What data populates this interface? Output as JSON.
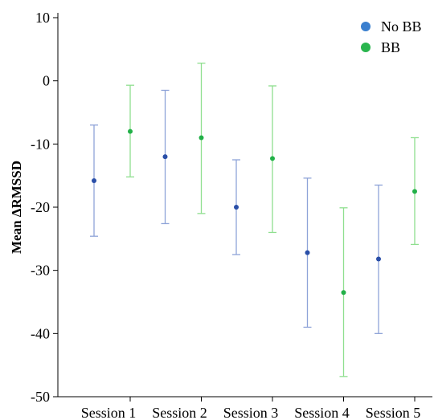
{
  "chart_data": {
    "type": "scatter",
    "subtype": "error-bar",
    "title": "",
    "xlabel": "",
    "ylabel": "Mean ΔRMSSD",
    "ylim": [
      -50,
      10
    ],
    "yticks": [
      10,
      0,
      -10,
      -20,
      -30,
      -40,
      -50
    ],
    "categories": [
      "Session 1",
      "Session 2",
      "Session 3",
      "Session 4",
      "Session 5"
    ],
    "grid": false,
    "legend_position": "top-right",
    "series": [
      {
        "name": "No BB",
        "marker_color": "#2a4fa8",
        "bar_color": "#8ea3d8",
        "legend_color": "#3a7fcf",
        "values": [
          -15.8,
          -12.0,
          -20.0,
          -27.2,
          -28.2
        ],
        "lower": [
          -24.6,
          -22.6,
          -27.5,
          -39.0,
          -40.0
        ],
        "upper": [
          -7.0,
          -1.5,
          -12.5,
          -15.4,
          -16.5
        ]
      },
      {
        "name": "BB",
        "marker_color": "#22b048",
        "bar_color": "#8fdf8f",
        "legend_color": "#2ab54e",
        "values": [
          -8.0,
          -9.0,
          -12.3,
          -33.5,
          -17.5
        ],
        "lower": [
          -15.2,
          -21.0,
          -24.0,
          -46.8,
          -25.9
        ],
        "upper": [
          -0.7,
          2.8,
          -0.8,
          -20.1,
          -9.0
        ]
      }
    ]
  }
}
